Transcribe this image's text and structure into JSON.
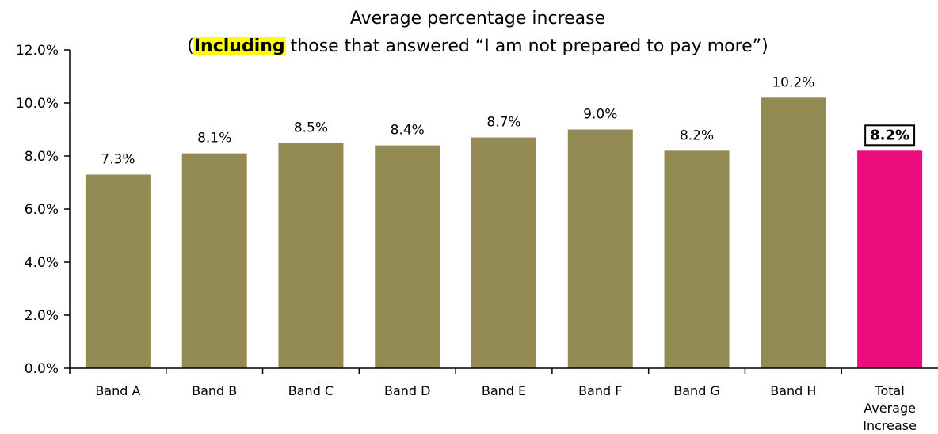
{
  "chart_data": {
    "type": "bar",
    "title_line1": "Average percentage increase",
    "title_line2_open": "(",
    "title_line2_highlight": "Including",
    "title_line2_rest": " those that answered “I am not prepared to pay more”)",
    "xlabel": "",
    "ylabel": "",
    "ylim": [
      0,
      12
    ],
    "yticks": [
      0,
      2,
      4,
      6,
      8,
      10,
      12
    ],
    "ytick_labels": [
      "0.0%",
      "2.0%",
      "4.0%",
      "6.0%",
      "8.0%",
      "10.0%",
      "12.0%"
    ],
    "categories": [
      [
        "Band A"
      ],
      [
        "Band B"
      ],
      [
        "Band C"
      ],
      [
        "Band D"
      ],
      [
        "Band E"
      ],
      [
        "Band F"
      ],
      [
        "Band G"
      ],
      [
        "Band H"
      ],
      [
        "Total",
        "Average",
        "Increase"
      ]
    ],
    "values": [
      7.3,
      8.1,
      8.5,
      8.4,
      8.7,
      9.0,
      8.2,
      10.2,
      8.2
    ],
    "value_labels": [
      "7.3%",
      "8.1%",
      "8.5%",
      "8.4%",
      "8.7%",
      "9.0%",
      "8.2%",
      "10.2%",
      "8.2%"
    ],
    "bar_color": "#948A54",
    "highlight_color": "#EC0C7C",
    "title_highlight_color": "#FFFF00",
    "grid": false,
    "legend": "none"
  }
}
